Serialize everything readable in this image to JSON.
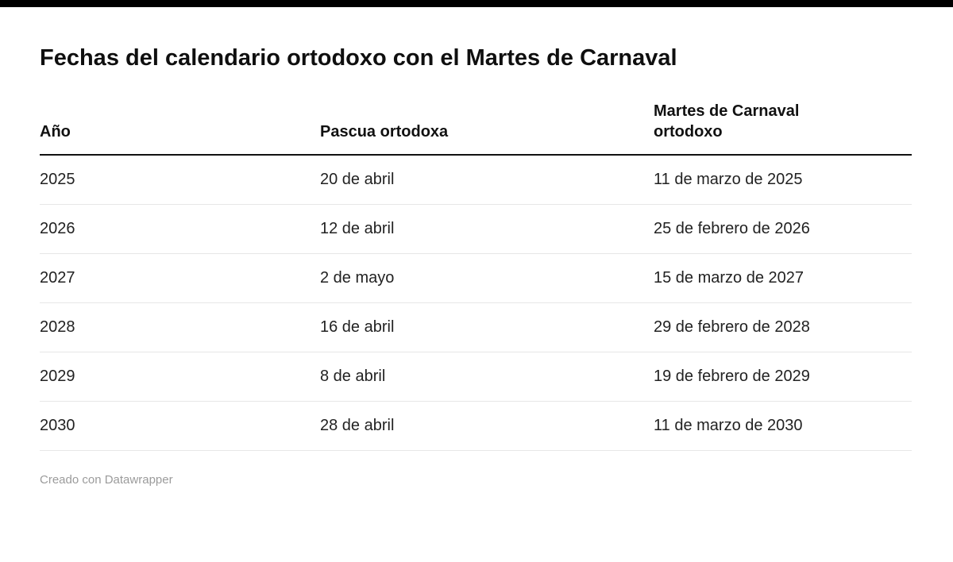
{
  "accent_color": "#000000",
  "footer": {
    "attribution": "Creado con Datawrapper"
  },
  "chart_data": {
    "type": "table",
    "title": "Fechas del calendario ortodoxo con el Martes de Carnaval",
    "columns": [
      "Año",
      "Pascua ortodoxa",
      "Martes de Carnaval ortodoxo"
    ],
    "rows": [
      [
        "2025",
        "20 de abril",
        "11 de marzo de 2025"
      ],
      [
        "2026",
        "12 de abril",
        "25 de febrero de 2026"
      ],
      [
        "2027",
        "2 de mayo",
        "15 de marzo de 2027"
      ],
      [
        "2028",
        "16 de abril",
        "29 de febrero de 2028"
      ],
      [
        "2029",
        "8 de abril",
        "19 de febrero de 2029"
      ],
      [
        "2030",
        "28 de abril",
        "11 de marzo de 2030"
      ]
    ],
    "layout": {
      "grid": "horizontal-row-separators",
      "header_rule_color": "#111111",
      "row_separator_color": "#e7e7e7",
      "alignment": "left"
    }
  }
}
